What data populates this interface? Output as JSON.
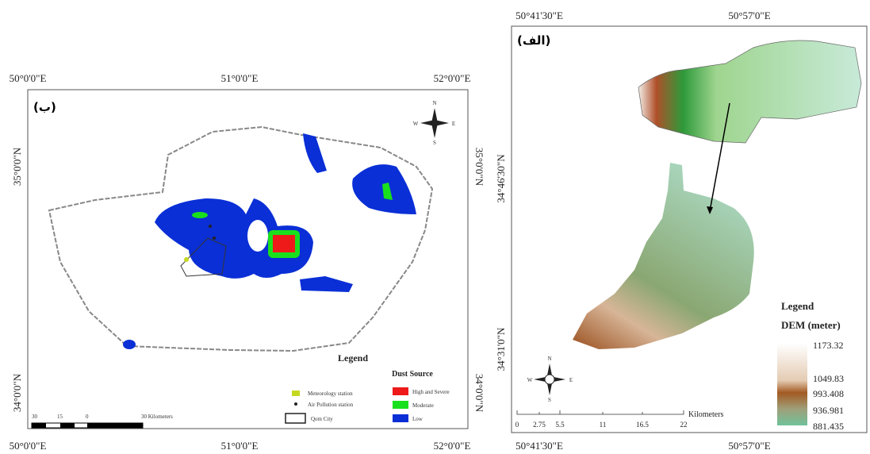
{
  "left_map": {
    "label": "(ب)",
    "top_longitudes": [
      "50°0'0\"E",
      "51°0'0\"E",
      "52°0'0\"E"
    ],
    "bottom_longitudes": [
      "50°0'0\"E",
      "51°0'0\"E",
      "52°0'0\"E"
    ],
    "left_latitudes": [
      "35°0'0\"N",
      "34°0'0\"N"
    ],
    "right_latitudes": [
      "35°0'0\"N",
      "34°0'0\"N"
    ],
    "compass": {
      "n": "N",
      "s": "S",
      "w": "W",
      "e": "E"
    },
    "scale_bar": [
      "30",
      "15",
      "0",
      "30 Kilometers"
    ],
    "legend": {
      "title": "Legend",
      "stations": [
        "Meteorology station",
        "Air Pollution station",
        "Qom City"
      ],
      "dust_title": "Dust Source",
      "dust_classes": [
        "High and Severe",
        "Moderate",
        "Low"
      ]
    }
  },
  "right_map": {
    "label": "(الف)",
    "top_longitudes": [
      "50°41'30\"E",
      "50°57'0\"E"
    ],
    "bottom_longitudes": [
      "50°41'30\"E",
      "50°57'0\"E"
    ],
    "left_latitudes": [
      "34°46'30\"N",
      "34°31'0\"N"
    ],
    "compass": {
      "n": "N",
      "s": "S",
      "w": "W",
      "e": "E"
    },
    "scale_bar": {
      "ticks": [
        "0",
        "2.75",
        "5.5",
        "11",
        "16.5",
        "22"
      ],
      "unit": "Kilometers"
    },
    "legend": {
      "title": "Legend",
      "subtitle": "DEM (meter)",
      "values": [
        "1173.32",
        "1049.83",
        "993.408",
        "936.981",
        "881.435"
      ]
    }
  }
}
